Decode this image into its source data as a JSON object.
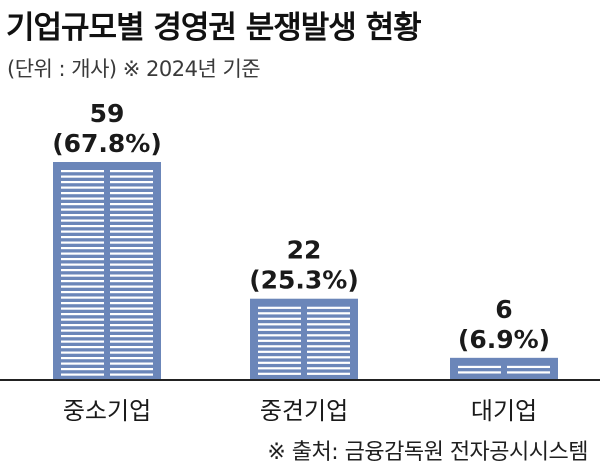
{
  "title": "기업규모별 경영권 분쟁발생 현황",
  "subtitle": "(단위 : 개사) ※ 2024년 기준",
  "source": "※ 출처: 금융감독원 전자공시시스템",
  "colors": {
    "bar": "#6b86b9",
    "stripe": "#ffffff",
    "axis": "#222222",
    "text": "#1a1a1a"
  },
  "chart_data": {
    "type": "bar",
    "title": "기업규모별 경영권 분쟁발생 현황",
    "xlabel": "",
    "ylabel": "",
    "unit": "개사",
    "categories": [
      "중소기업",
      "중견기업",
      "대기업"
    ],
    "values": [
      59,
      22,
      6
    ],
    "value_labels": [
      "59",
      "22",
      "6"
    ],
    "percent_labels": [
      "(67.8%)",
      "(25.3%)",
      "(6.9%)"
    ],
    "ylim": [
      0,
      59
    ],
    "grid": false,
    "legend": "none"
  }
}
